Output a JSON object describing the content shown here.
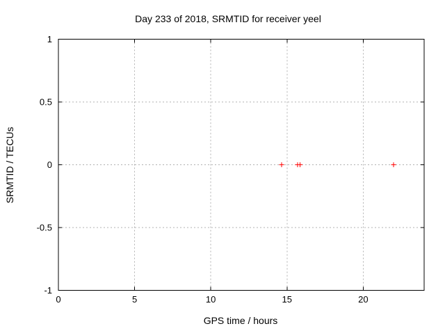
{
  "window": {
    "background": "#ffffff"
  },
  "chart_data": {
    "type": "scatter",
    "title": "Day 233 of 2018, SRMTID for receiver yeel",
    "xlabel": "GPS time / hours",
    "ylabel": "SRMTID / TECUs",
    "xlim": [
      0,
      24
    ],
    "ylim": [
      -1,
      1
    ],
    "xticks": [
      0,
      5,
      10,
      15,
      20
    ],
    "yticks": [
      1,
      0.5,
      0,
      -0.5,
      -1
    ],
    "grid": true,
    "legend": "none",
    "series": [
      {
        "name": "SRMTID",
        "marker": "plus",
        "color": "#ff0000",
        "points": [
          [
            14.65,
            0
          ],
          [
            15.7,
            0
          ],
          [
            15.85,
            0
          ],
          [
            22.0,
            0
          ]
        ]
      }
    ],
    "colors": {
      "grid": "#b0b0b0",
      "axis": "#000000",
      "text": "#000000"
    }
  }
}
